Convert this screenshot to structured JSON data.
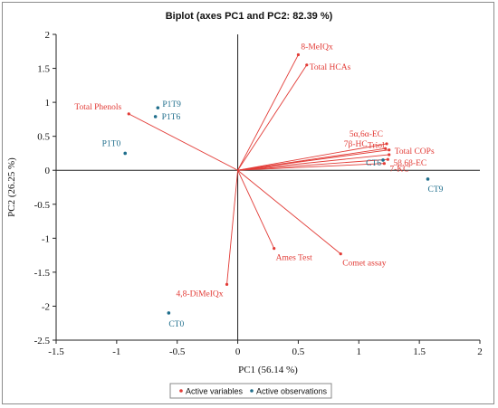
{
  "chart_data": {
    "type": "scatter",
    "title": "Biplot (axes PC1 and PC2: 82.39 %)",
    "xlabel": "PC1 (56.14 %)",
    "ylabel": "PC2 (26.25 %)",
    "xlim": [
      -1.5,
      2
    ],
    "ylim": [
      -2.5,
      2
    ],
    "x_ticks": [
      "-1.5",
      "-1",
      "-0.5",
      "0",
      "0.5",
      "1",
      "1.5",
      "2"
    ],
    "y_ticks": [
      "-2.5",
      "-2",
      "-1.5",
      "-1",
      "-0.5",
      "0",
      "0.5",
      "1",
      "1.5",
      "2"
    ],
    "grid": false,
    "legend_position": "bottom",
    "legend": [
      {
        "name": "Active variables",
        "color": "#e23b36"
      },
      {
        "name": "Active observations",
        "color": "#1f6e8c"
      }
    ],
    "series": [
      {
        "name": "Active variables",
        "color": "#e23b36",
        "style": "vectors-from-origin",
        "points": [
          {
            "label": "8-MeIQx",
            "x": 0.5,
            "y": 1.7
          },
          {
            "label": "Total HCAs",
            "x": 0.57,
            "y": 1.55
          },
          {
            "label": "Total Phenols",
            "x": -0.9,
            "y": 0.83
          },
          {
            "label": "5α,6α-EC",
            "x": 1.23,
            "y": 0.39
          },
          {
            "label": "7β-HC",
            "x": 1.22,
            "y": 0.32
          },
          {
            "label": "Triol",
            "x": 1.25,
            "y": 0.3
          },
          {
            "label": "Total COPs",
            "x": 1.25,
            "y": 0.23
          },
          {
            "label": "5β,6β-EC",
            "x": 1.24,
            "y": 0.16
          },
          {
            "label": "7-KC",
            "x": 1.21,
            "y": 0.1
          },
          {
            "label": "Ames Test",
            "x": 0.3,
            "y": -1.15
          },
          {
            "label": "Comet assay",
            "x": 0.85,
            "y": -1.23
          },
          {
            "label": "4,8-DiMeIQx",
            "x": -0.09,
            "y": -1.68
          }
        ]
      },
      {
        "name": "Active observations",
        "color": "#1f6e8c",
        "style": "points",
        "points": [
          {
            "label": "P1T9",
            "x": -0.66,
            "y": 0.92
          },
          {
            "label": "P1T6",
            "x": -0.68,
            "y": 0.79
          },
          {
            "label": "P1T0",
            "x": -0.93,
            "y": 0.25
          },
          {
            "label": "CT6",
            "x": 1.2,
            "y": 0.15
          },
          {
            "label": "CT9",
            "x": 1.57,
            "y": -0.13
          },
          {
            "label": "CT0",
            "x": -0.57,
            "y": -2.1
          }
        ]
      }
    ]
  }
}
